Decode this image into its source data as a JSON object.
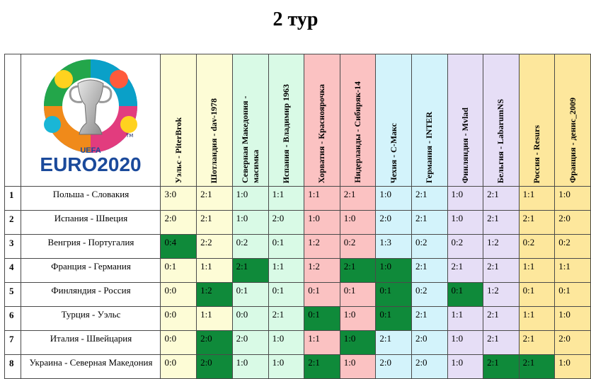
{
  "page_title": "2 тур",
  "logo": {
    "line1": "UEFA",
    "line2": "EURO2020"
  },
  "colors": {
    "hit": "#0f8a3a",
    "border": "#4a4a4a"
  },
  "players": [
    {
      "label": "Уэльс - PiterBrok",
      "bg": "#fdfcd6"
    },
    {
      "label": "Шотландия - dav-1978",
      "bg": "#fdfcd6"
    },
    {
      "label": "Северная Македония - масимка",
      "bg": "#d9fae6"
    },
    {
      "label": "Испания - Владимир 1963",
      "bg": "#d9fae6"
    },
    {
      "label": "Хорватия - Красноярочка",
      "bg": "#fbc2c2"
    },
    {
      "label": "Нидерланды - Сибиряк-14",
      "bg": "#fbc2c2"
    },
    {
      "label": "Чехия - С-Макс",
      "bg": "#d3f3fb"
    },
    {
      "label": "Германия - INTER",
      "bg": "#d3f3fb"
    },
    {
      "label": "Финляндия - Mvlad",
      "bg": "#e6def6"
    },
    {
      "label": "Бельгия - LabarumNS",
      "bg": "#e6def6"
    },
    {
      "label": "Россия - Resurs",
      "bg": "#fde79c"
    },
    {
      "label": "Франция - денис_2009",
      "bg": "#fde79c"
    }
  ],
  "rows": [
    {
      "num": "1",
      "match": "Польша - Словакия",
      "scores": [
        "3:0",
        "2:1",
        "1:0",
        "1:1",
        "1:1",
        "2:1",
        "1:0",
        "2:1",
        "1:0",
        "2:1",
        "1:1",
        "1:0"
      ],
      "hits": [
        0,
        0,
        0,
        0,
        0,
        0,
        0,
        0,
        0,
        0,
        0,
        0
      ]
    },
    {
      "num": "2",
      "match": "Испания - Швеция",
      "scores": [
        "2:0",
        "2:1",
        "1:0",
        "2:0",
        "1:0",
        "1:0",
        "2:0",
        "2:1",
        "1:0",
        "2:1",
        "2:1",
        "2:0"
      ],
      "hits": [
        0,
        0,
        0,
        0,
        0,
        0,
        0,
        0,
        0,
        0,
        0,
        0
      ]
    },
    {
      "num": "3",
      "match": "Венгрия - Португалия",
      "scores": [
        "0:4",
        "2:2",
        "0:2",
        "0:1",
        "1:2",
        "0:2",
        "1:3",
        "0:2",
        "0:2",
        "1:2",
        "0:2",
        "0:2"
      ],
      "hits": [
        1,
        0,
        0,
        0,
        0,
        0,
        0,
        0,
        0,
        0,
        0,
        0
      ]
    },
    {
      "num": "4",
      "match": "Франция - Германия",
      "scores": [
        "0:1",
        "1:1",
        "2:1",
        "1:1",
        "1:2",
        "2:1",
        "1:0",
        "2:1",
        "2:1",
        "2:1",
        "1:1",
        "1:1"
      ],
      "hits": [
        0,
        0,
        1,
        0,
        0,
        1,
        1,
        0,
        0,
        0,
        0,
        0
      ]
    },
    {
      "num": "5",
      "match": "Финляндия - Россия",
      "scores": [
        "0:0",
        "1:2",
        "0:1",
        "0:1",
        "0:1",
        "0:1",
        "0:1",
        "0:2",
        "0:1",
        "1:2",
        "0:1",
        "0:1"
      ],
      "hits": [
        0,
        1,
        0,
        0,
        0,
        0,
        1,
        0,
        1,
        0,
        0,
        0
      ]
    },
    {
      "num": "6",
      "match": "Турция - Уэльс",
      "scores": [
        "0:0",
        "1:1",
        "0:0",
        "2:1",
        "0:1",
        "1:0",
        "0:1",
        "2:1",
        "1:1",
        "2:1",
        "1:1",
        "1:0"
      ],
      "hits": [
        0,
        0,
        0,
        0,
        1,
        0,
        1,
        0,
        0,
        0,
        0,
        0
      ]
    },
    {
      "num": "7",
      "match": "Италия - Швейцария",
      "scores": [
        "0:0",
        "2:0",
        "2:0",
        "1:0",
        "1:1",
        "1:0",
        "2:1",
        "2:0",
        "1:0",
        "2:1",
        "2:1",
        "2:0"
      ],
      "hits": [
        0,
        1,
        0,
        0,
        0,
        1,
        0,
        0,
        0,
        0,
        0,
        0
      ]
    },
    {
      "num": "8",
      "match": "Украина - Северная Македония",
      "scores": [
        "0:0",
        "2:0",
        "1:0",
        "1:0",
        "2:1",
        "1:0",
        "2:0",
        "2:0",
        "1:0",
        "2:1",
        "2:1",
        "1:0"
      ],
      "hits": [
        0,
        1,
        0,
        0,
        1,
        0,
        0,
        0,
        0,
        1,
        1,
        0
      ]
    }
  ]
}
